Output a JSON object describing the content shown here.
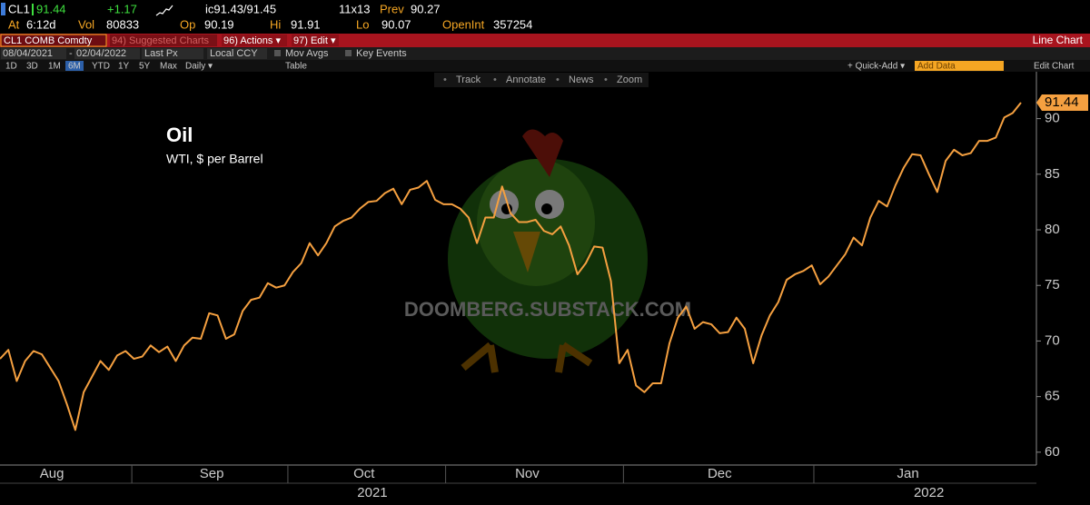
{
  "ui": {
    "ticker": "CL1",
    "last": "91.44",
    "change": "+1.17",
    "bid_ask": "ic91.43/91.45",
    "size": "11x13",
    "prev_label": "Prev",
    "prev": "90.27",
    "time_label": "At",
    "time": "6:12d",
    "vol_label": "Vol",
    "vol": "80833",
    "op_label": "Op",
    "op": "90.19",
    "hi_label": "Hi",
    "hi": "91.91",
    "lo_label": "Lo",
    "lo": "90.07",
    "oi_label": "OpenInt",
    "oi": "357254",
    "security": "CL1 COMB Comdty",
    "menu": [
      "94) Suggested Charts",
      "96) Actions ▾",
      "97) Edit ▾"
    ],
    "chart_kind": "Line Chart",
    "start": "08/04/2021",
    "end": "02/04/2022",
    "field": "Last Px",
    "currency": "Local CCY",
    "mov_avgs": "Mov Avgs",
    "key_events": "Key Events",
    "ranges": [
      "1D",
      "3D",
      "1M",
      "6M",
      "YTD",
      "1Y",
      "5Y",
      "Max"
    ],
    "period": "Daily ▾",
    "table": "Table",
    "quick_add": "+ Quick-Add ▾",
    "add_data": "Add Data",
    "edit_chart": "Edit Chart",
    "tools": [
      "Track",
      "Annotate",
      "News",
      "Zoom"
    ],
    "watermark": "DOOMBERG.SUBSTACK.COM"
  },
  "chart_data": {
    "type": "line",
    "title": "Oil",
    "subtitle": "WTI, $ per Barrel",
    "color": "#f5a040",
    "grid": false,
    "values": [
      68.4,
      69.2,
      66.4,
      68.2,
      69.1,
      68.8,
      67.6,
      66.4,
      64.3,
      62.0,
      65.4,
      66.8,
      68.2,
      67.4,
      68.7,
      69.1,
      68.4,
      68.6,
      69.6,
      69.0,
      69.5,
      68.2,
      69.6,
      70.3,
      70.2,
      72.5,
      72.3,
      70.2,
      70.6,
      72.7,
      73.7,
      73.9,
      75.2,
      74.8,
      75.0,
      76.2,
      77.0,
      78.8,
      77.7,
      78.8,
      80.3,
      80.8,
      81.1,
      81.9,
      82.5,
      82.6,
      83.3,
      83.7,
      82.3,
      83.6,
      83.8,
      84.4,
      82.7,
      82.3,
      82.3,
      81.9,
      81.1,
      78.8,
      81.1,
      81.1,
      83.9,
      81.5,
      80.7,
      80.7,
      80.9,
      79.9,
      79.6,
      80.3,
      78.6,
      76.0,
      77.0,
      78.5,
      78.4,
      75.4,
      68.0,
      69.2,
      66.0,
      65.4,
      66.2,
      66.2,
      69.8,
      72.1,
      73.1,
      71.1,
      71.7,
      71.5,
      70.7,
      70.8,
      72.1,
      71.1,
      68.0,
      70.5,
      72.3,
      73.5,
      75.5,
      76.0,
      76.3,
      76.8,
      75.1,
      75.8,
      76.8,
      77.8,
      79.3,
      78.6,
      81.1,
      82.6,
      82.1,
      84.0,
      85.6,
      86.8,
      86.7,
      85.0,
      83.4,
      86.2,
      87.2,
      86.7,
      86.9,
      88.0,
      88.0,
      88.3,
      90.1,
      90.5,
      91.44
    ],
    "xlim": [
      0,
      122
    ],
    "xticks": [
      {
        "value": 6.2,
        "label": "Aug"
      },
      {
        "value": 25.3,
        "label": "Sep"
      },
      {
        "value": 43.5,
        "label": "Oct"
      },
      {
        "value": 63,
        "label": "Nov"
      },
      {
        "value": 86,
        "label": "Dec"
      },
      {
        "value": 108.5,
        "label": "Jan"
      }
    ],
    "years": [
      {
        "value": 44.5,
        "label": "2021"
      },
      {
        "value": 111,
        "label": "2022"
      }
    ],
    "ylim": [
      58.6,
      92.5
    ],
    "yticks": [
      60,
      65,
      70,
      75,
      80,
      85,
      90
    ]
  }
}
